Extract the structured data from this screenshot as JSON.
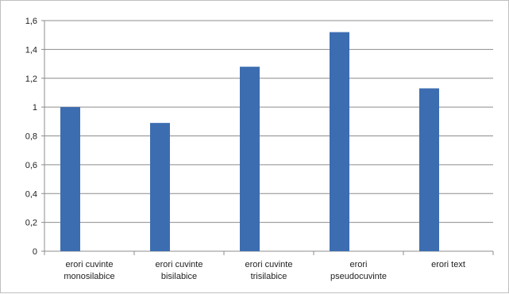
{
  "chart_data": {
    "type": "bar",
    "categories": [
      [
        "erori cuvinte",
        "monosilabice"
      ],
      [
        "erori cuvinte",
        "bisilabice"
      ],
      [
        "erori cuvinte",
        "trisilabice"
      ],
      [
        "erori",
        "pseudocuvinte"
      ],
      [
        "erori text"
      ]
    ],
    "values": [
      1.0,
      0.89,
      1.28,
      1.52,
      1.13
    ],
    "y_ticks": [
      "0",
      "0,2",
      "0,4",
      "0,6",
      "0,8",
      "1",
      "1,2",
      "1,4",
      "1,6"
    ],
    "ylim": [
      0,
      1.6
    ],
    "grid": true,
    "legend": "none",
    "colors": {
      "bar": "#3d6db1",
      "grid": "#8c8c8c",
      "axis": "#8c8c8c"
    }
  }
}
